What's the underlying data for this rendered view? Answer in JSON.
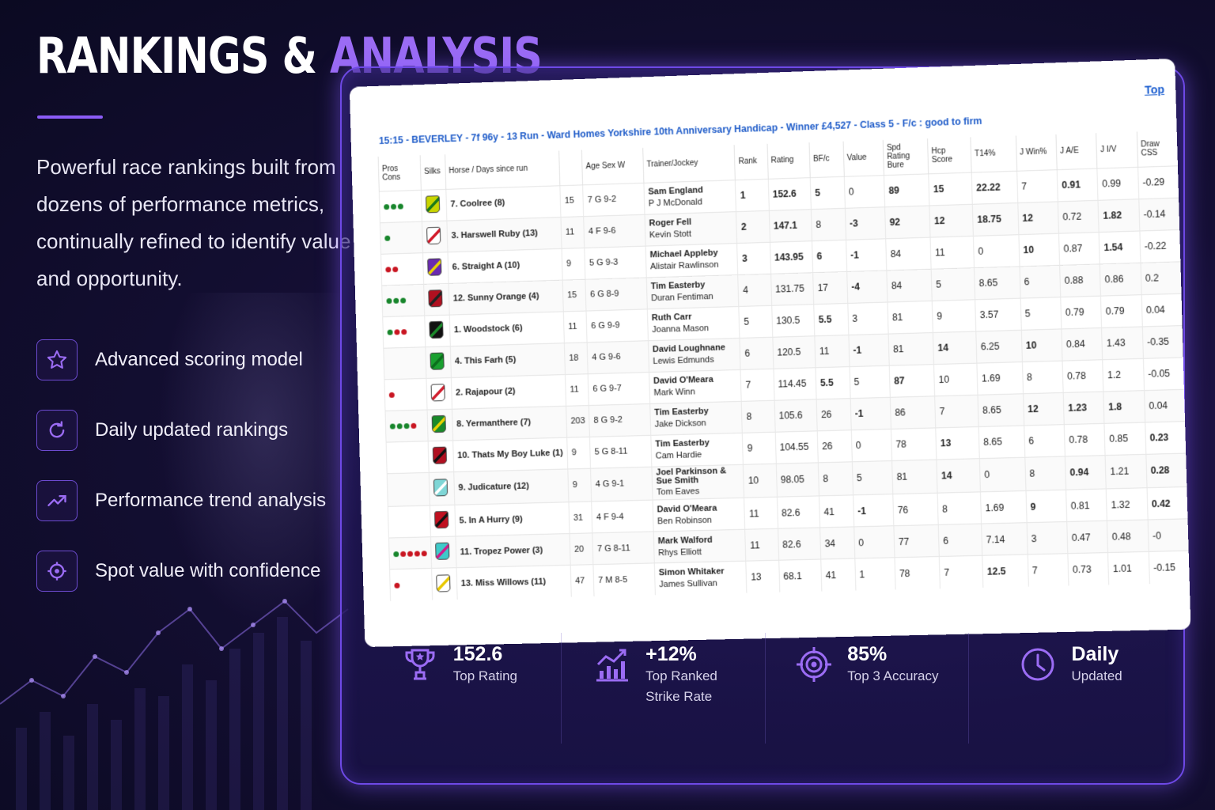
{
  "hero": {
    "title_main": "RANKINGS &",
    "title_accent": "ANALYSIS",
    "description": "Powerful race rankings built from dozens of performance metrics, continually refined to identify value and opportunity."
  },
  "features": [
    {
      "label": "Advanced scoring model",
      "icon": "star-icon"
    },
    {
      "label": "Daily updated rankings",
      "icon": "refresh-icon"
    },
    {
      "label": "Performance trend analysis",
      "icon": "trend-icon"
    },
    {
      "label": "Spot value with confidence",
      "icon": "crosshair-icon"
    }
  ],
  "sheet": {
    "top_link": "Top",
    "race_title": "15:15 - BEVERLEY - 7f 96y - 13 Run - Ward Homes Yorkshire 10th Anniversary Handicap - Winner £4,527 - Class 5 - F/c : good to firm",
    "headers": {
      "pros_cons": "Pros Cons",
      "silks": "Silks",
      "horse": "Horse / Days since run",
      "draw": "",
      "age_sex_w": "Age Sex W",
      "trainer_jockey": "Trainer/Jockey",
      "rank": "Rank",
      "rating": "Rating",
      "bfc": "BF/c",
      "value": "Value",
      "spd": "Spd Rating Bure",
      "hcp": "Hcp Score",
      "t14": "T14%",
      "jwin": "J Win%",
      "jae": "J A/E",
      "jiv": "J I/V",
      "draw_css": "Draw CSS"
    },
    "rows": [
      {
        "dots": "ggg",
        "silk_colors": [
          "#c8d400",
          "#1a7a1a"
        ],
        "horse": "7. Coolree (8)",
        "draw": "15",
        "asw": "7 G 9-2",
        "trainer": "Sam England",
        "jockey": "P J McDonald",
        "rank": "1",
        "rating": "152.6",
        "bfc": "5",
        "value": "0",
        "spd": "89",
        "hcp": "15",
        "t14": "22.22",
        "jwin": "7",
        "jae": "0.91",
        "jiv": "0.99",
        "css": "-0.29",
        "red": [
          "rank",
          "rating",
          "bfc",
          "spd",
          "hcp",
          "t14",
          "jae"
        ]
      },
      {
        "dots": "g",
        "silk_colors": [
          "#ffffff",
          "#d21a2a"
        ],
        "horse": "3. Harswell Ruby (13)",
        "draw": "11",
        "asw": "4 F 9-6",
        "trainer": "Roger Fell",
        "jockey": "Kevin Stott",
        "rank": "2",
        "rating": "147.1",
        "bfc": "8",
        "value": "-3",
        "spd": "92",
        "hcp": "12",
        "t14": "18.75",
        "jwin": "12",
        "jae": "0.72",
        "jiv": "1.82",
        "css": "-0.14",
        "red": [
          "rank",
          "rating",
          "value",
          "spd",
          "hcp",
          "t14",
          "jwin",
          "jiv"
        ]
      },
      {
        "dots": "rr",
        "silk_colors": [
          "#6a2bb0",
          "#e8d200"
        ],
        "horse": "6. Straight A (10)",
        "draw": "9",
        "asw": "5 G 9-3",
        "trainer": "Michael Appleby",
        "jockey": "Alistair Rawlinson",
        "rank": "3",
        "rating": "143.95",
        "bfc": "6",
        "value": "-1",
        "spd": "84",
        "hcp": "11",
        "t14": "0",
        "jwin": "10",
        "jae": "0.87",
        "jiv": "1.54",
        "css": "-0.22",
        "red": [
          "rank",
          "rating",
          "bfc",
          "value",
          "jwin",
          "jiv"
        ]
      },
      {
        "dots": "ggg",
        "silk_colors": [
          "#b01020",
          "#222222"
        ],
        "horse": "12. Sunny Orange (4)",
        "draw": "15",
        "asw": "6 G 8-9",
        "trainer": "Tim Easterby",
        "jockey": "Duran Fentiman",
        "rank": "4",
        "rating": "131.75",
        "bfc": "17",
        "value": "-4",
        "spd": "84",
        "hcp": "5",
        "t14": "8.65",
        "jwin": "6",
        "jae": "0.88",
        "jiv": "0.86",
        "css": "0.2",
        "red": [
          "value"
        ]
      },
      {
        "dots": "grr",
        "silk_colors": [
          "#111111",
          "#1a8a2a"
        ],
        "horse": "1. Woodstock (6)",
        "draw": "11",
        "asw": "6 G 9-9",
        "trainer": "Ruth Carr",
        "jockey": "Joanna Mason",
        "rank": "5",
        "rating": "130.5",
        "bfc": "5.5",
        "value": "3",
        "spd": "81",
        "hcp": "9",
        "t14": "3.57",
        "jwin": "5",
        "jae": "0.79",
        "jiv": "0.79",
        "css": "0.04",
        "red": [
          "bfc"
        ]
      },
      {
        "dots": "",
        "silk_colors": [
          "#1aa030",
          "#0c6e1c"
        ],
        "horse": "4. This Farh (5)",
        "draw": "18",
        "asw": "4 G 9-6",
        "trainer": "David Loughnane",
        "jockey": "Lewis Edmunds",
        "rank": "6",
        "rating": "120.5",
        "bfc": "11",
        "value": "-1",
        "spd": "81",
        "hcp": "14",
        "t14": "6.25",
        "jwin": "10",
        "jae": "0.84",
        "jiv": "1.43",
        "css": "-0.35",
        "red": [
          "value",
          "hcp",
          "jwin"
        ]
      },
      {
        "dots": "r",
        "silk_colors": [
          "#ffffff",
          "#d22030"
        ],
        "horse": "2. Rajapour (2)",
        "draw": "11",
        "asw": "6 G 9-7",
        "trainer": "David O'Meara",
        "jockey": "Mark Winn",
        "rank": "7",
        "rating": "114.45",
        "bfc": "5.5",
        "value": "5",
        "spd": "87",
        "hcp": "10",
        "t14": "1.69",
        "jwin": "8",
        "jae": "0.78",
        "jiv": "1.2",
        "css": "-0.05",
        "red": [
          "bfc",
          "spd"
        ]
      },
      {
        "dots": "gggr",
        "silk_colors": [
          "#1a8a2a",
          "#e8d200"
        ],
        "horse": "8. Yermanthere (7)",
        "draw": "203",
        "asw": "8 G 9-2",
        "trainer": "Tim Easterby",
        "jockey": "Jake Dickson",
        "rank": "8",
        "rating": "105.6",
        "bfc": "26",
        "value": "-1",
        "spd": "86",
        "hcp": "7",
        "t14": "8.65",
        "jwin": "12",
        "jae": "1.23",
        "jiv": "1.8",
        "css": "0.04",
        "red": [
          "value",
          "jwin",
          "jae",
          "jiv"
        ]
      },
      {
        "dots": "",
        "silk_colors": [
          "#b01020",
          "#111111"
        ],
        "horse": "10. Thats My Boy Luke (1)",
        "draw": "9",
        "asw": "5 G 8-11",
        "trainer": "Tim Easterby",
        "jockey": "Cam Hardie",
        "rank": "9",
        "rating": "104.55",
        "bfc": "26",
        "value": "0",
        "spd": "78",
        "hcp": "13",
        "t14": "8.65",
        "jwin": "6",
        "jae": "0.78",
        "jiv": "0.85",
        "css": "0.23",
        "red": [
          "hcp",
          "css"
        ]
      },
      {
        "dots": "",
        "silk_colors": [
          "#7fd6d6",
          "#ffffff"
        ],
        "horse": "9. Judicature (12)",
        "draw": "9",
        "asw": "4 G 9-1",
        "trainer": "Joel Parkinson & Sue Smith",
        "jockey": "Tom Eaves",
        "rank": "10",
        "rating": "98.05",
        "bfc": "8",
        "value": "5",
        "spd": "81",
        "hcp": "14",
        "t14": "0",
        "jwin": "8",
        "jae": "0.94",
        "jiv": "1.21",
        "css": "0.28",
        "red": [
          "hcp",
          "jae",
          "css"
        ]
      },
      {
        "dots": "",
        "silk_colors": [
          "#c01020",
          "#111111"
        ],
        "horse": "5. In A Hurry (9)",
        "draw": "31",
        "asw": "4 F 9-4",
        "trainer": "David O'Meara",
        "jockey": "Ben Robinson",
        "rank": "11",
        "rating": "82.6",
        "bfc": "41",
        "value": "-1",
        "spd": "76",
        "hcp": "8",
        "t14": "1.69",
        "jwin": "9",
        "jae": "0.81",
        "jiv": "1.32",
        "css": "0.42",
        "red": [
          "value",
          "jwin",
          "css"
        ]
      },
      {
        "dots": "grrrr",
        "silk_colors": [
          "#3fc9c9",
          "#d01a8a"
        ],
        "horse": "11. Tropez Power (3)",
        "draw": "20",
        "asw": "7 G 8-11",
        "trainer": "Mark Walford",
        "jockey": "Rhys Elliott",
        "rank": "11",
        "rating": "82.6",
        "bfc": "34",
        "value": "0",
        "spd": "77",
        "hcp": "6",
        "t14": "7.14",
        "jwin": "3",
        "jae": "0.47",
        "jiv": "0.48",
        "css": "-0",
        "red": []
      },
      {
        "dots": "r",
        "silk_colors": [
          "#ffffff",
          "#e8c800"
        ],
        "horse": "13. Miss Willows (11)",
        "draw": "47",
        "asw": "7 M 8-5",
        "trainer": "Simon Whitaker",
        "jockey": "James Sullivan",
        "rank": "13",
        "rating": "68.1",
        "bfc": "41",
        "value": "1",
        "spd": "78",
        "hcp": "7",
        "t14": "12.5",
        "jwin": "7",
        "jae": "0.73",
        "jiv": "1.01",
        "css": "-0.15",
        "red": [
          "t14"
        ]
      }
    ]
  },
  "stats": [
    {
      "value": "152.6",
      "label": "Top Rating",
      "icon": "trophy-icon"
    },
    {
      "value": "+12%",
      "label": "Top Ranked Strike Rate",
      "icon": "bar-chart-icon"
    },
    {
      "value": "85%",
      "label": "Top 3 Accuracy",
      "icon": "target-icon"
    },
    {
      "value": "Daily",
      "label": "Updated",
      "icon": "clock-icon"
    }
  ],
  "colors": {
    "accent": "#9b6cf4",
    "panel_border": "#6e49e6",
    "red_value": "#d0141f",
    "link": "#1f5cc9"
  }
}
